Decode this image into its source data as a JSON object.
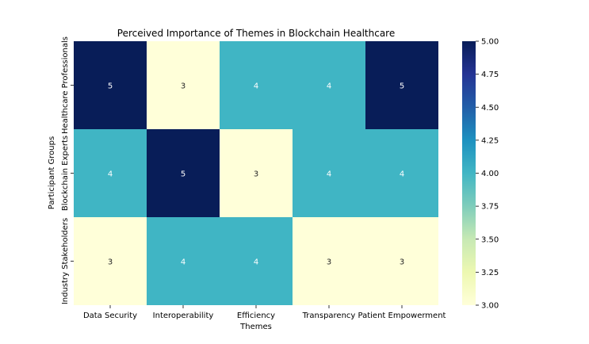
{
  "chart_data": {
    "type": "heatmap",
    "title": "Perceived Importance of Themes in Blockchain Healthcare",
    "xlabel": "Themes",
    "ylabel": "Participant Groups",
    "x_categories": [
      "Data Security",
      "Interoperability",
      "Efficiency",
      "Transparency",
      "Patient Empowerment"
    ],
    "y_categories": [
      "Healthcare Professionals",
      "Blockchain Experts",
      "Industry Stakeholders"
    ],
    "values": [
      [
        5,
        3,
        4,
        4,
        5
      ],
      [
        4,
        5,
        3,
        4,
        4
      ],
      [
        3,
        4,
        4,
        3,
        3
      ]
    ],
    "annotations": true,
    "colormap": "YlGnBu",
    "colorbar": {
      "range": [
        3.0,
        5.0
      ],
      "ticks": [
        "3.00",
        "3.25",
        "3.50",
        "3.75",
        "4.00",
        "4.25",
        "4.50",
        "4.75",
        "5.00"
      ]
    },
    "colors": {
      "value_3": "#ffffd9",
      "value_4": "#40b5c4",
      "value_5": "#081d58"
    }
  }
}
